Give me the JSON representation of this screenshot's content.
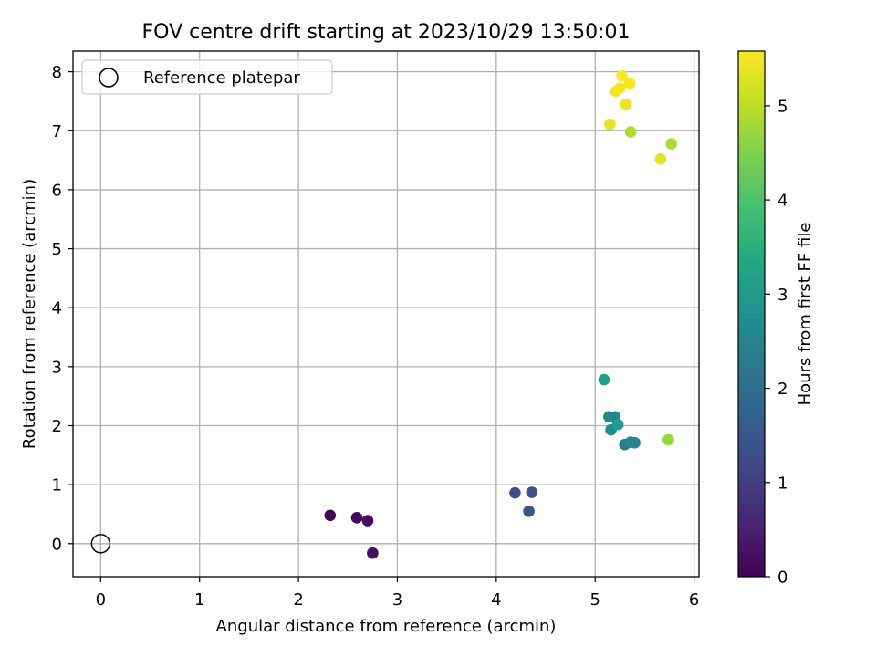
{
  "chart_data": {
    "type": "scatter",
    "title": "FOV centre drift starting at 2023/10/29 13:50:01",
    "xlabel": "Angular distance from reference (arcmin)",
    "ylabel": "Rotation from reference (arcmin)",
    "xlim": [
      -0.28,
      6.05
    ],
    "ylim": [
      -0.56,
      8.35
    ],
    "xticks": [
      0,
      1,
      2,
      3,
      4,
      5,
      6
    ],
    "yticks": [
      0,
      1,
      2,
      3,
      4,
      5,
      6,
      7,
      8
    ],
    "grid": true,
    "legend": {
      "placement": "top-left",
      "entries": [
        "Reference platepar"
      ]
    },
    "reference_point": {
      "x": 0,
      "y": 0,
      "label": "Reference platepar",
      "marker": "open-circle"
    },
    "colorbar": {
      "label": "Hours from first FF file",
      "colormap": "viridis",
      "range": [
        0,
        5.58
      ],
      "ticks": [
        0,
        1,
        2,
        3,
        4,
        5
      ]
    },
    "points": [
      {
        "x": 2.32,
        "y": 0.48,
        "hours": 0.05
      },
      {
        "x": 2.59,
        "y": 0.44,
        "hours": 0.12
      },
      {
        "x": 2.7,
        "y": 0.39,
        "hours": 0.18
      },
      {
        "x": 2.75,
        "y": -0.16,
        "hours": 0.25
      },
      {
        "x": 4.19,
        "y": 0.86,
        "hours": 1.35
      },
      {
        "x": 4.36,
        "y": 0.87,
        "hours": 1.42
      },
      {
        "x": 4.33,
        "y": 0.55,
        "hours": 1.5
      },
      {
        "x": 5.3,
        "y": 1.68,
        "hours": 2.3
      },
      {
        "x": 5.4,
        "y": 1.71,
        "hours": 2.4
      },
      {
        "x": 5.36,
        "y": 1.72,
        "hours": 2.5
      },
      {
        "x": 5.14,
        "y": 2.15,
        "hours": 2.55
      },
      {
        "x": 5.2,
        "y": 2.15,
        "hours": 2.6
      },
      {
        "x": 5.16,
        "y": 1.93,
        "hours": 2.7
      },
      {
        "x": 5.23,
        "y": 2.02,
        "hours": 3.05
      },
      {
        "x": 5.09,
        "y": 2.78,
        "hours": 3.15
      },
      {
        "x": 5.74,
        "y": 1.76,
        "hours": 4.7
      },
      {
        "x": 5.77,
        "y": 6.78,
        "hours": 4.85
      },
      {
        "x": 5.36,
        "y": 6.98,
        "hours": 4.9
      },
      {
        "x": 5.66,
        "y": 6.52,
        "hours": 5.35
      },
      {
        "x": 5.15,
        "y": 7.11,
        "hours": 5.4
      },
      {
        "x": 5.31,
        "y": 7.45,
        "hours": 5.45
      },
      {
        "x": 5.21,
        "y": 7.67,
        "hours": 5.48
      },
      {
        "x": 5.25,
        "y": 7.72,
        "hours": 5.5
      },
      {
        "x": 5.35,
        "y": 7.8,
        "hours": 5.52
      },
      {
        "x": 5.27,
        "y": 7.93,
        "hours": 5.55
      }
    ]
  }
}
